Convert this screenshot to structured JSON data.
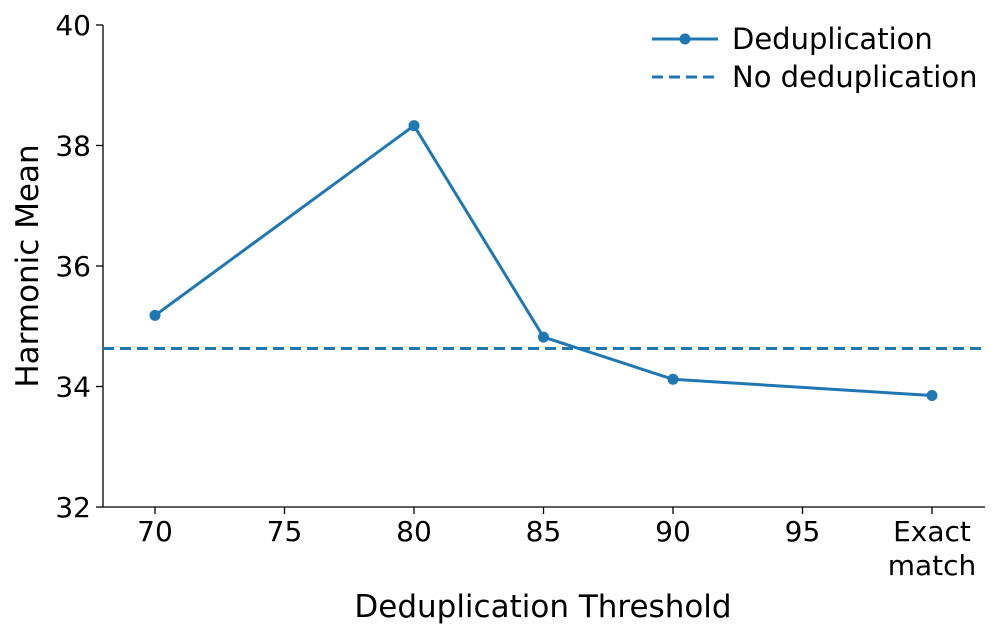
{
  "chart_data": {
    "type": "line",
    "xlabel": "Deduplication Threshold",
    "ylabel": "Harmonic Mean",
    "ylim": [
      32,
      40
    ],
    "yticks": [
      "32",
      "34",
      "36",
      "38",
      "40"
    ],
    "x_ticks": [
      {
        "value": 70,
        "label": [
          "70"
        ]
      },
      {
        "value": 75,
        "label": [
          "75"
        ]
      },
      {
        "value": 80,
        "label": [
          "80"
        ]
      },
      {
        "value": 85,
        "label": [
          "85"
        ]
      },
      {
        "value": 90,
        "label": [
          "90"
        ]
      },
      {
        "value": 95,
        "label": [
          "95"
        ]
      },
      {
        "value": 100,
        "label": [
          "Exact",
          "match"
        ]
      }
    ],
    "series": [
      {
        "name": "Deduplication",
        "style": "solid-with-markers",
        "color": "#1f77b4",
        "points": [
          {
            "x": 70,
            "y": 35.18
          },
          {
            "x": 80,
            "y": 38.33
          },
          {
            "x": 85,
            "y": 34.82
          },
          {
            "x": 90,
            "y": 34.12
          },
          {
            "x": 100,
            "y": 33.85
          }
        ]
      },
      {
        "name": "No deduplication",
        "style": "dashed",
        "color": "#1f77b4",
        "y": 34.63
      }
    ],
    "legend_position": "top-right",
    "grid": false
  }
}
